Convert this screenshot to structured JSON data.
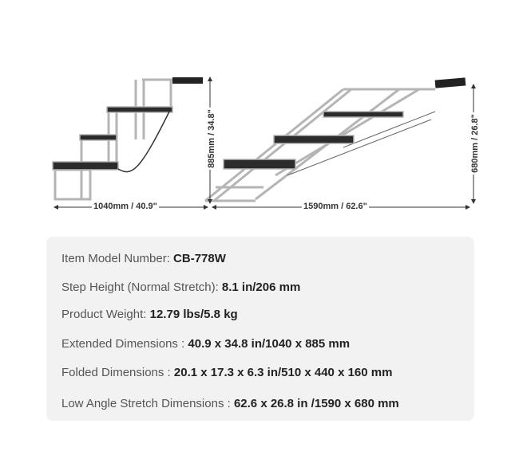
{
  "diagram": {
    "stair_width_label": "1040mm / 40.9\"",
    "stair_height_label": "885mm / 34.8\"",
    "ramp_width_label": "1590mm / 62.6\"",
    "ramp_height_label": "680mm / 26.8\""
  },
  "specs": [
    {
      "label": "Item Model Number: ",
      "value": "CB-778W"
    },
    {
      "label": "Step Height (Normal Stretch): ",
      "value": "8.1 in/206 mm"
    },
    {
      "label": "Product Weight: ",
      "value": "12.79 lbs/5.8 kg"
    },
    {
      "label": "Extended Dimensions : ",
      "value": "40.9 x 34.8 in/1040 x 885 mm"
    },
    {
      "label": "Folded Dimensions : ",
      "value": "20.1 x 17.3 x 6.3 in/510 x 440 x 160 mm"
    },
    {
      "label": "Low Angle Stretch Dimensions : ",
      "value": "62.6 x 26.8 in /1590 x 680 mm"
    }
  ]
}
